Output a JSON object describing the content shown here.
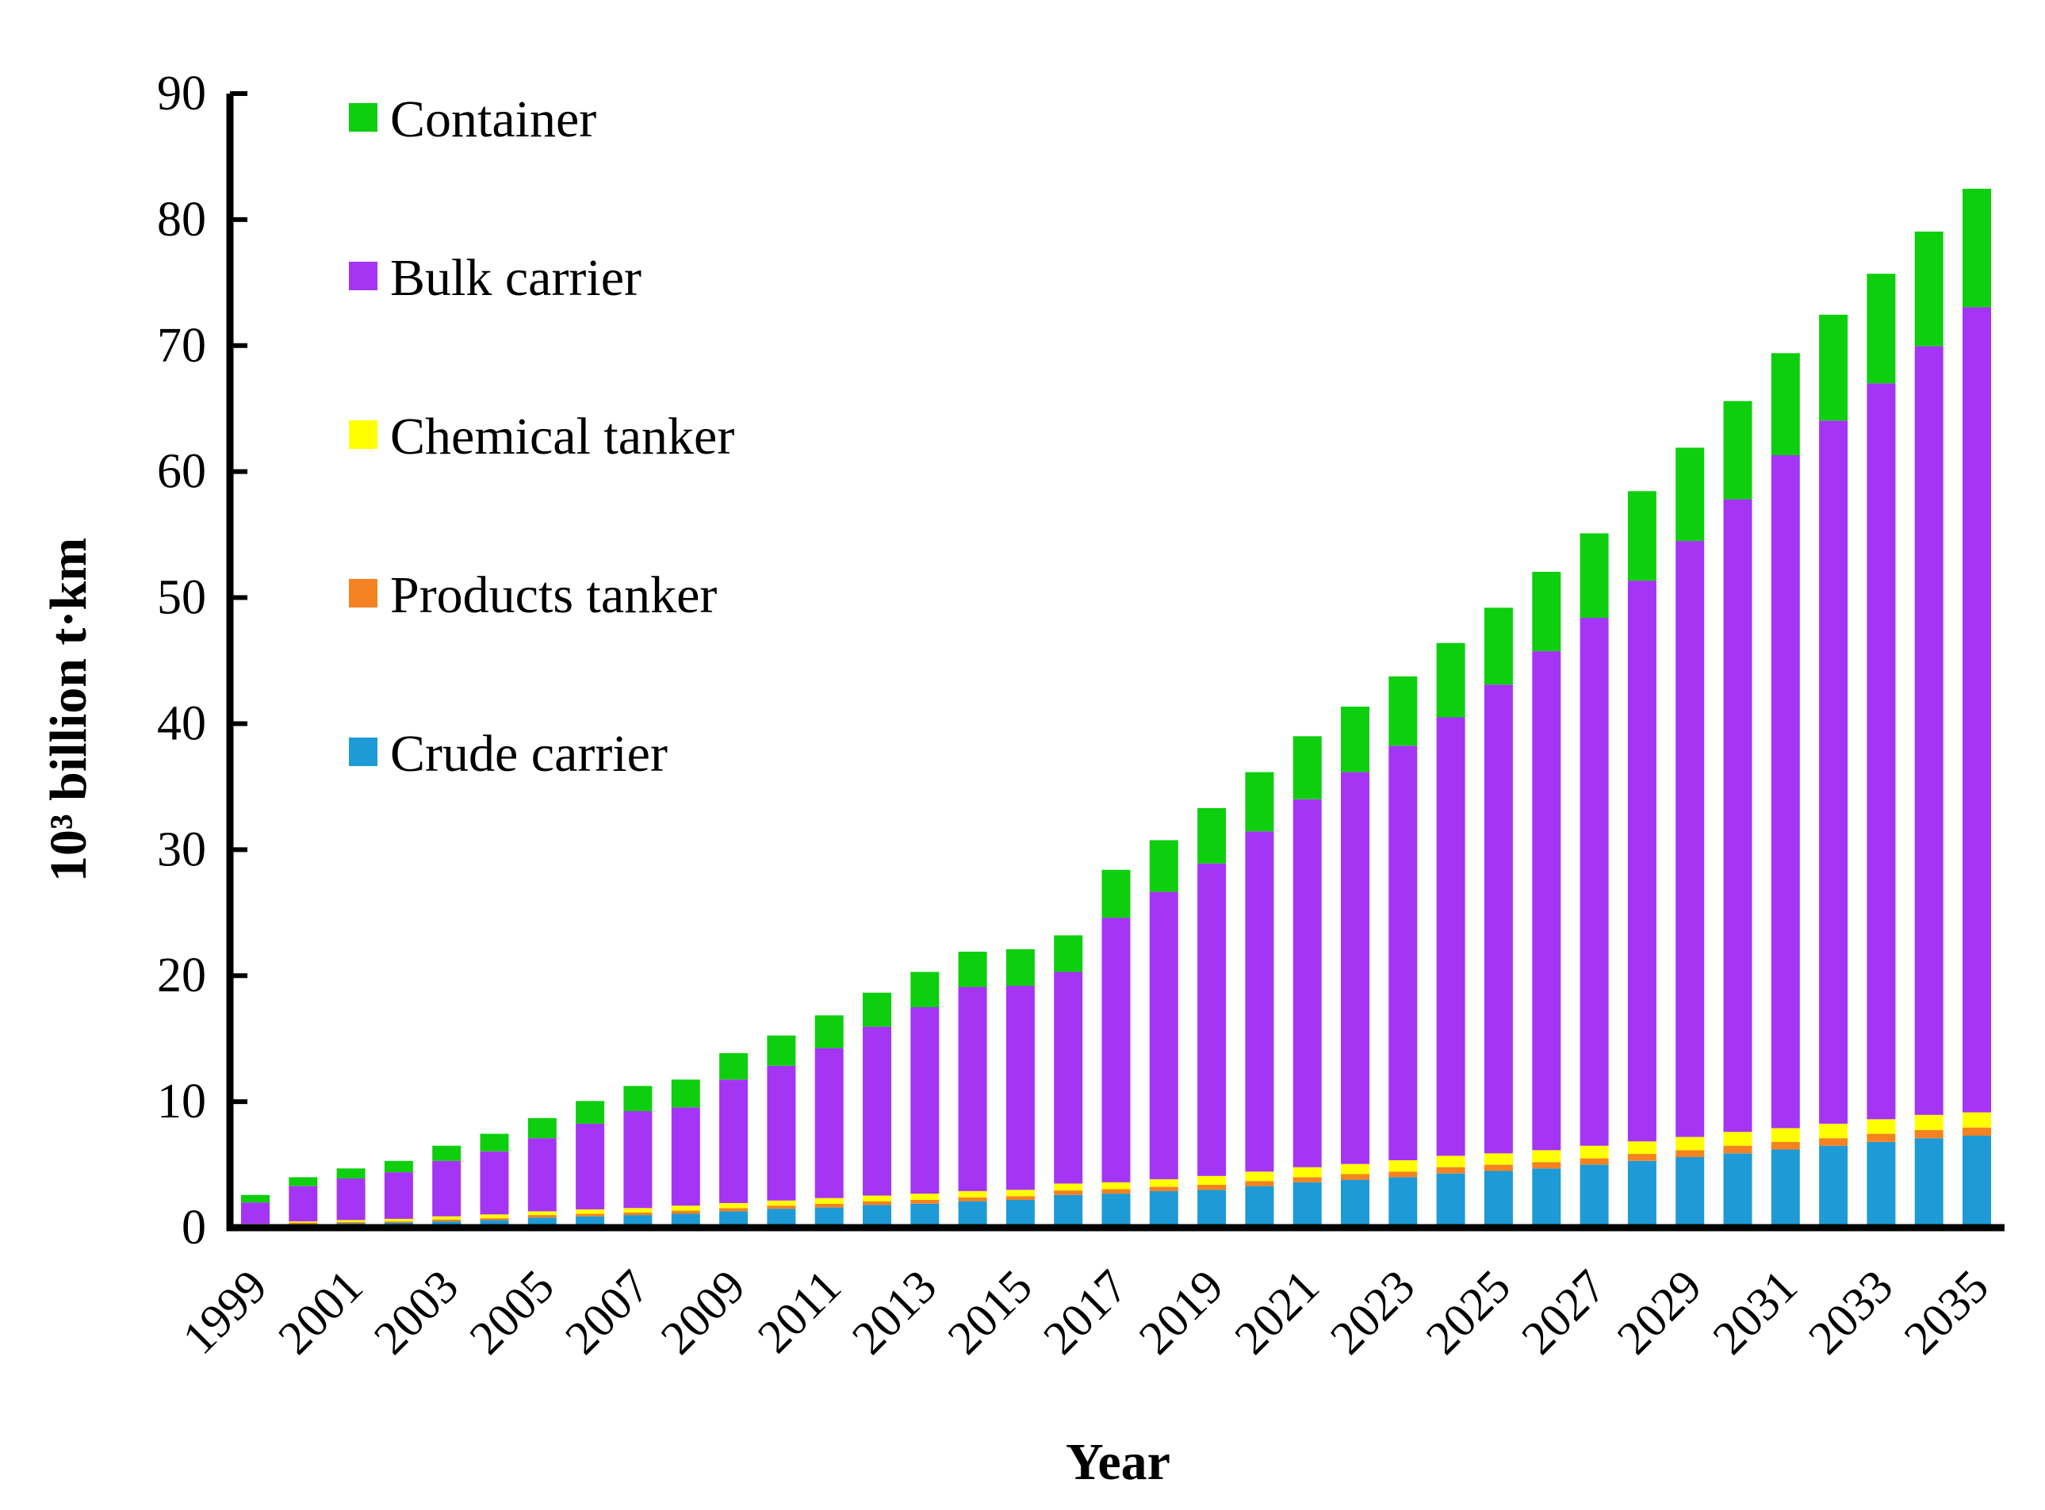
{
  "chart_data": {
    "type": "bar",
    "stacked": true,
    "title": "",
    "xlabel": "Year",
    "ylabel": "10³ billion t·km",
    "ylim": [
      0,
      90
    ],
    "yticks": [
      0,
      10,
      20,
      30,
      40,
      50,
      60,
      70,
      80,
      90
    ],
    "grid": false,
    "legend_position": "top-left",
    "legend_order": [
      "Container",
      "Bulk carrier",
      "Chemical tanker",
      "Products tanker",
      "Crude carrier"
    ],
    "x_tick_labels": [
      "1999",
      "2001",
      "2003",
      "2005",
      "2007",
      "2009",
      "2011",
      "2013",
      "2015",
      "2017",
      "2019",
      "2021",
      "2023",
      "2025",
      "2027",
      "2029",
      "2031",
      "2033",
      "2035"
    ],
    "categories": [
      "1999",
      "2000",
      "2001",
      "2002",
      "2003",
      "2004",
      "2005",
      "2006",
      "2007",
      "2008",
      "2009",
      "2010",
      "2011",
      "2012",
      "2013",
      "2014",
      "2015",
      "2016",
      "2017",
      "2018",
      "2019",
      "2020",
      "2021",
      "2022",
      "2023",
      "2024",
      "2025",
      "2026",
      "2027",
      "2028",
      "2029",
      "2030",
      "2031",
      "2032",
      "2033",
      "2034",
      "2035"
    ],
    "series": [
      {
        "name": "Crude carrier",
        "color": "#1e9ad6",
        "values": [
          0.2,
          0.3,
          0.35,
          0.4,
          0.5,
          0.6,
          0.8,
          0.9,
          1.0,
          1.1,
          1.3,
          1.5,
          1.6,
          1.8,
          1.9,
          2.1,
          2.2,
          2.6,
          2.7,
          2.9,
          3.0,
          3.3,
          3.6,
          3.8,
          4.0,
          4.3,
          4.5,
          4.7,
          5.0,
          5.3,
          5.6,
          5.9,
          6.2,
          6.5,
          6.8,
          7.1,
          7.3
        ]
      },
      {
        "name": "Products tanker",
        "color": "#f58220",
        "values": [
          0.05,
          0.1,
          0.1,
          0.1,
          0.15,
          0.15,
          0.2,
          0.2,
          0.2,
          0.25,
          0.25,
          0.25,
          0.3,
          0.3,
          0.3,
          0.3,
          0.3,
          0.35,
          0.35,
          0.35,
          0.4,
          0.4,
          0.4,
          0.45,
          0.45,
          0.5,
          0.5,
          0.5,
          0.5,
          0.55,
          0.55,
          0.6,
          0.6,
          0.6,
          0.65,
          0.65,
          0.65
        ]
      },
      {
        "name": "Chemical tanker",
        "color": "#ffff00",
        "values": [
          0.05,
          0.1,
          0.15,
          0.2,
          0.25,
          0.3,
          0.3,
          0.35,
          0.35,
          0.4,
          0.4,
          0.4,
          0.45,
          0.45,
          0.5,
          0.5,
          0.5,
          0.55,
          0.55,
          0.6,
          0.7,
          0.75,
          0.8,
          0.8,
          0.9,
          0.9,
          0.9,
          0.95,
          1.0,
          1.0,
          1.05,
          1.1,
          1.1,
          1.15,
          1.15,
          1.2,
          1.2
        ]
      },
      {
        "name": "Bulk carrier",
        "color": "#a535f5",
        "values": [
          1.7,
          2.8,
          3.3,
          3.7,
          4.4,
          5.0,
          5.8,
          6.8,
          7.7,
          7.8,
          9.8,
          10.7,
          11.9,
          13.4,
          14.8,
          16.2,
          16.2,
          16.8,
          21.0,
          22.8,
          24.8,
          27.0,
          29.2,
          31.1,
          32.9,
          34.8,
          37.2,
          39.6,
          41.9,
          44.5,
          47.3,
          50.2,
          53.4,
          55.8,
          58.4,
          61.0,
          63.9
        ]
      },
      {
        "name": "Container",
        "color": "#0ecf0e",
        "values": [
          0.6,
          0.7,
          0.8,
          0.9,
          1.2,
          1.4,
          1.6,
          1.8,
          2.0,
          2.2,
          2.1,
          2.4,
          2.6,
          2.7,
          2.8,
          2.8,
          2.9,
          2.9,
          3.8,
          4.1,
          4.4,
          4.7,
          5.0,
          5.2,
          5.5,
          5.9,
          6.1,
          6.3,
          6.7,
          7.1,
          7.4,
          7.8,
          8.1,
          8.4,
          8.7,
          9.1,
          9.4
        ]
      }
    ]
  }
}
